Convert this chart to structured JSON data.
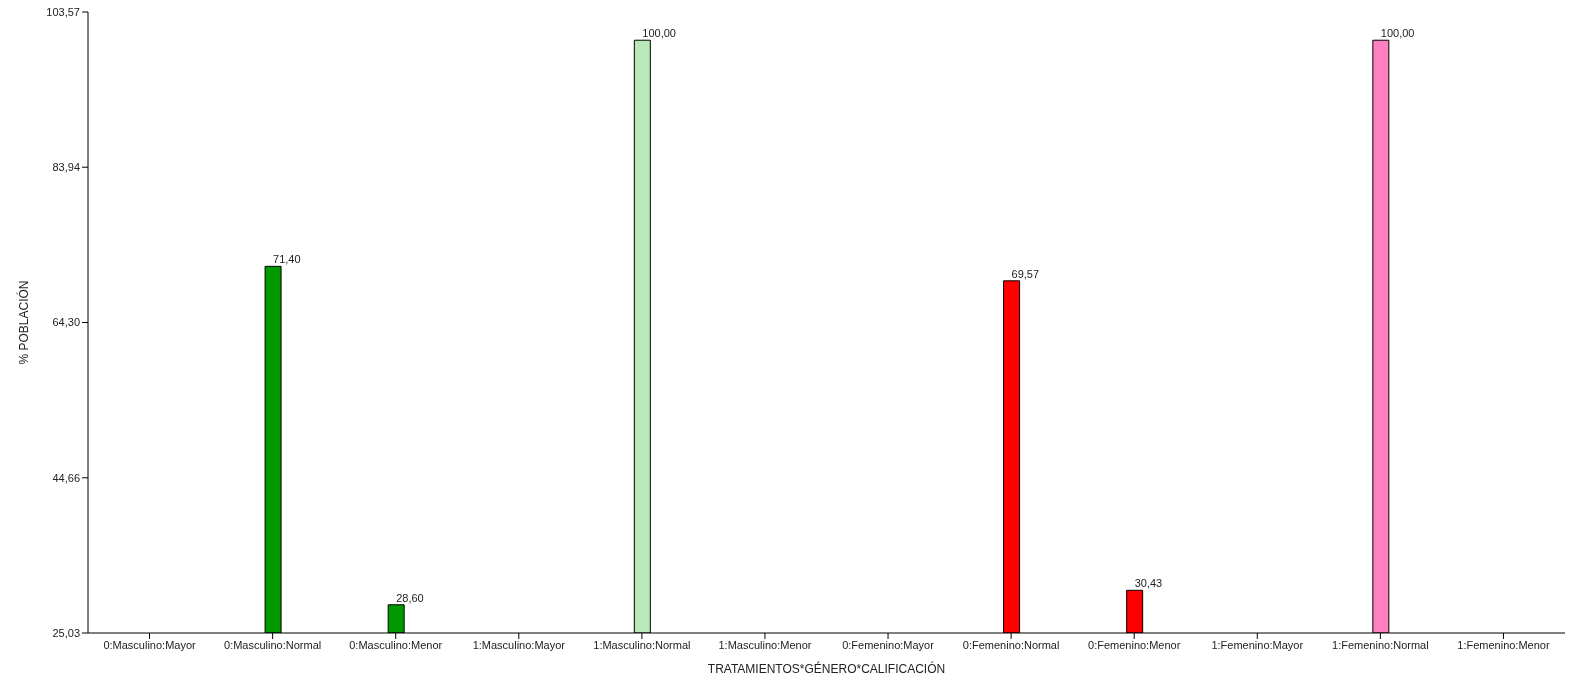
{
  "chart_data": {
    "type": "bar",
    "xlabel": "TRATAMIENTOS*GÉNERO*CALIFICACIÓN",
    "ylabel": "% POBLACIÓN",
    "categories": [
      "0:Masculino:Mayor",
      "0:Masculino:Normal",
      "0:Masculino:Menor",
      "1:Masculino:Mayor",
      "1:Masculino:Normal",
      "1:Masculino:Menor",
      "0:Femenino:Mayor",
      "0:Femenino:Normal",
      "0:Femenino:Menor",
      "1:Femenino:Mayor",
      "1:Femenino:Normal",
      "1:Femenino:Menor"
    ],
    "values": [
      null,
      71.4,
      28.6,
      null,
      100,
      null,
      null,
      69.57,
      30.43,
      null,
      100,
      null
    ],
    "value_labels": [
      null,
      "71,40",
      "28,60",
      null,
      "100,00",
      null,
      null,
      "69,57",
      "30,43",
      null,
      "100,00",
      null
    ],
    "colors": [
      "#009900",
      "#009900",
      "#009900",
      "#b9e8b9",
      "#b9e8b9",
      "#b9e8b9",
      "#ff0000",
      "#ff0000",
      "#ff0000",
      "#ff80c0",
      "#ff80c0",
      "#ff80c0"
    ],
    "ylim": [
      25.03,
      103.57
    ],
    "yticks": [
      {
        "value": 25.03,
        "label": "25,03"
      },
      {
        "value": 44.66,
        "label": "44,66"
      },
      {
        "value": 64.3,
        "label": "64,30"
      },
      {
        "value": 83.94,
        "label": "83,94"
      },
      {
        "value": 103.57,
        "label": "103,57"
      }
    ],
    "grid": false,
    "legend": false
  }
}
